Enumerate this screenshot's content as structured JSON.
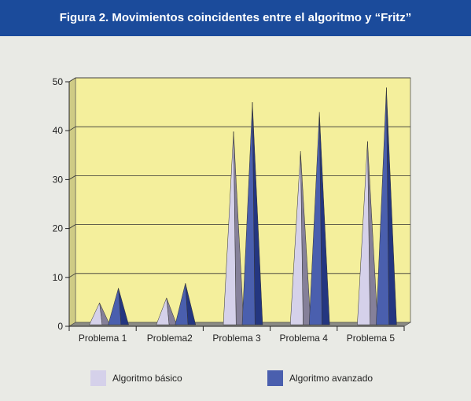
{
  "title": "Figura 2. Movimientos coincidentes entre el algoritmo y “Fritz”",
  "chart_data": {
    "type": "bar",
    "bar_shape": "3d-cone",
    "categories": [
      "Problema 1",
      "Problema2",
      "Problema 3",
      "Problema 4",
      "Problema 5"
    ],
    "series": [
      {
        "name": "Algoritmo básico",
        "values": [
          4,
          5,
          39,
          35,
          37
        ]
      },
      {
        "name": "Algoritmo avanzado",
        "values": [
          7,
          8,
          45,
          43,
          48
        ]
      }
    ],
    "ylim": [
      0,
      50
    ],
    "yticks": [
      "0",
      "10",
      "20",
      "30",
      "40",
      "50"
    ],
    "grid": true,
    "legend_position": "bottom",
    "colors": {
      "plot_background": "#f4ef9c",
      "basic_light": "#d5d1ea",
      "basic_dark": "#858099",
      "advanced_light": "#4a5fae",
      "advanced_dark": "#243680",
      "floor": "#8a8a85"
    }
  }
}
